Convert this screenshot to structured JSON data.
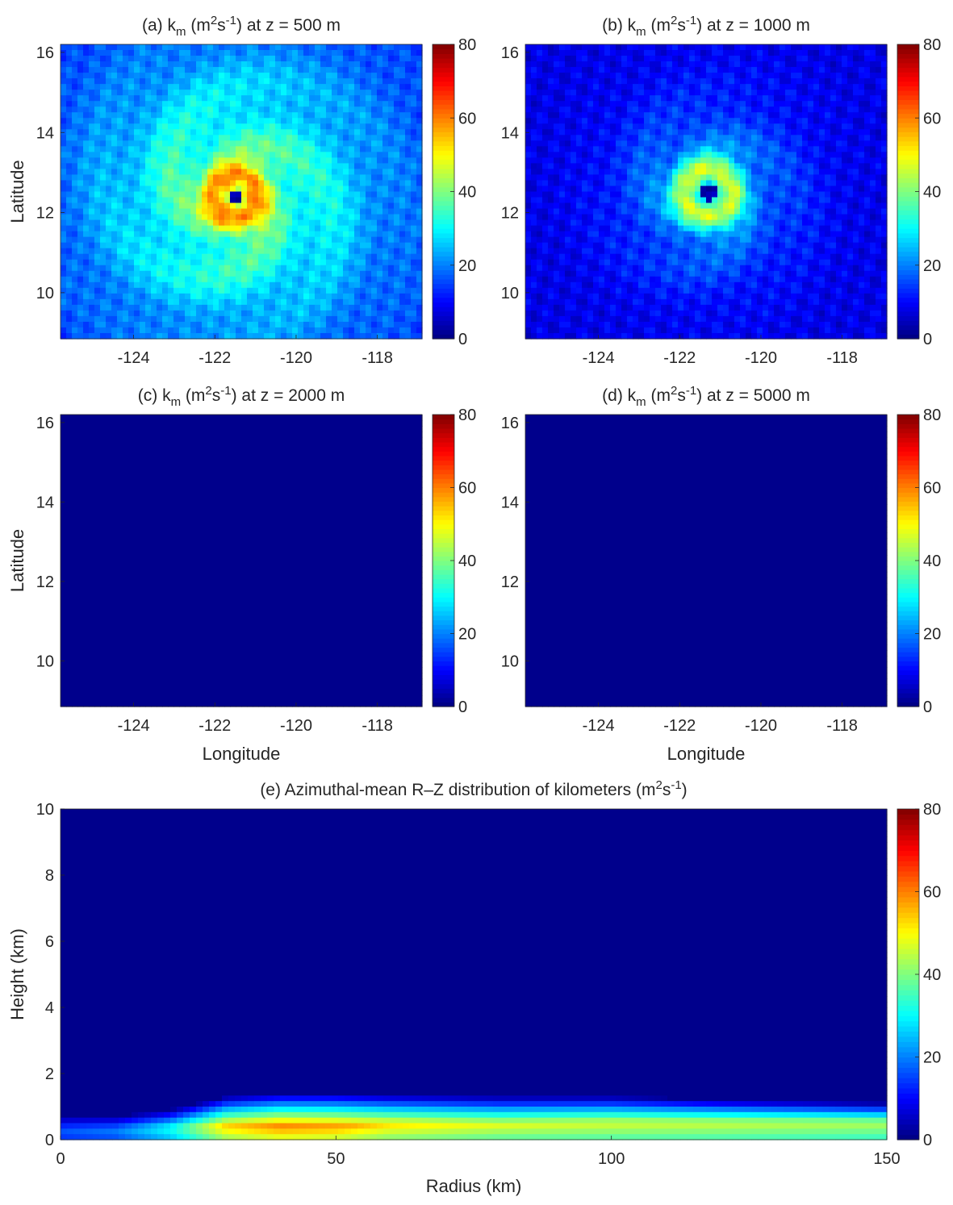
{
  "figure": {
    "colormap": "jet",
    "colorbar_ticks": [
      "0",
      "20",
      "40",
      "60",
      "80"
    ],
    "clim": [
      0,
      80
    ]
  },
  "chart_data": [
    {
      "type": "heatmap",
      "id": "a",
      "title_prefix": "(a) k",
      "title_sub": "m",
      "title_units_open": " (m",
      "title_sup1": "2",
      "title_units_mid": "s",
      "title_sup2": "-1",
      "title_suffix": ") at z = 500 m",
      "xlabel": "",
      "ylabel": "Latitude",
      "xlim": [
        -125.8,
        -116.9
      ],
      "ylim": [
        8.85,
        16.2
      ],
      "xticks": [
        "-124",
        "-122",
        "-120",
        "-118"
      ],
      "yticks": [
        "10",
        "12",
        "14",
        "16"
      ],
      "field": {
        "center": [
          -121.5,
          12.4
        ],
        "background": 14,
        "peak": 55,
        "eye_radius_deg": 0.18,
        "eye_value": 5,
        "core_radius_deg": 0.55,
        "core_value": 65,
        "outer_radius_deg": 3.4,
        "outer_value": 40
      }
    },
    {
      "type": "heatmap",
      "id": "b",
      "title_prefix": "(b) k",
      "title_sub": "m",
      "title_units_open": " (m",
      "title_sup1": "2",
      "title_units_mid": "s",
      "title_sup2": "-1",
      "title_suffix": ") at z = 1000 m",
      "xlabel": "",
      "ylabel": "",
      "xlim": [
        -125.8,
        -116.9
      ],
      "ylim": [
        8.85,
        16.2
      ],
      "xticks": [
        "-124",
        "-122",
        "-120",
        "-118"
      ],
      "yticks": [
        "10",
        "12",
        "14",
        "16"
      ],
      "field": {
        "center": [
          -121.3,
          12.5
        ],
        "background": 8,
        "peak": 45,
        "eye_radius_deg": 0.22,
        "eye_value": 3,
        "core_radius_deg": 0.6,
        "core_value": 52,
        "outer_radius_deg": 2.2,
        "outer_value": 25
      }
    },
    {
      "type": "heatmap",
      "id": "c",
      "title_prefix": "(c) k",
      "title_sub": "m",
      "title_units_open": " (m",
      "title_sup1": "2",
      "title_units_mid": "s",
      "title_sup2": "-1",
      "title_suffix": ") at z = 2000 m",
      "xlabel": "Longitude",
      "ylabel": "Latitude",
      "xlim": [
        -125.8,
        -116.9
      ],
      "ylim": [
        8.85,
        16.2
      ],
      "xticks": [
        "-124",
        "-122",
        "-120",
        "-118"
      ],
      "yticks": [
        "10",
        "12",
        "14",
        "16"
      ],
      "field": {
        "center": [
          -121.5,
          12.4
        ],
        "background": 1,
        "peak": 0,
        "eye_radius_deg": 0,
        "eye_value": 1,
        "core_radius_deg": 0,
        "core_value": 1,
        "outer_radius_deg": 0,
        "outer_value": 1
      }
    },
    {
      "type": "heatmap",
      "id": "d",
      "title_prefix": "(d) k",
      "title_sub": "m",
      "title_units_open": " (m",
      "title_sup1": "2",
      "title_units_mid": "s",
      "title_sup2": "-1",
      "title_suffix": ") at z = 5000 m",
      "xlabel": "Longitude",
      "ylabel": "",
      "xlim": [
        -125.8,
        -116.9
      ],
      "ylim": [
        8.85,
        16.2
      ],
      "xticks": [
        "-124",
        "-122",
        "-120",
        "-118"
      ],
      "yticks": [
        "10",
        "12",
        "14",
        "16"
      ],
      "field": {
        "center": [
          -121.5,
          12.2
        ],
        "background": 1,
        "peak": 0,
        "eye_radius_deg": 0,
        "eye_value": 1,
        "core_radius_deg": 0,
        "core_value": 1,
        "outer_radius_deg": 0,
        "outer_value": 1
      }
    },
    {
      "type": "heatmap",
      "id": "e",
      "title_prefix": "(e) Azimuthal-mean R–Z distribution of kilometers (m",
      "title_sub": "",
      "title_units_open": "",
      "title_sup1": "2",
      "title_units_mid": "s",
      "title_sup2": "-1",
      "title_suffix": ")",
      "xlabel": "Radius (km)",
      "ylabel": "Height (km)",
      "xlim": [
        0,
        150
      ],
      "ylim": [
        0,
        10
      ],
      "xticks": [
        "0",
        "50",
        "100",
        "150"
      ],
      "yticks": [
        "0",
        "2",
        "4",
        "6",
        "8",
        "10"
      ],
      "profile": {
        "radius_km": [
          0,
          10,
          20,
          30,
          40,
          50,
          60,
          80,
          100,
          120,
          150
        ],
        "max_value": [
          15,
          18,
          30,
          52,
          58,
          56,
          50,
          46,
          45,
          44,
          42
        ],
        "peak_height_km": [
          0.3,
          0.3,
          0.35,
          0.4,
          0.4,
          0.4,
          0.45,
          0.45,
          0.5,
          0.5,
          0.5
        ],
        "top_height_km": [
          0.7,
          0.7,
          0.9,
          1.3,
          1.4,
          1.4,
          1.35,
          1.3,
          1.3,
          1.2,
          1.1
        ]
      }
    }
  ]
}
